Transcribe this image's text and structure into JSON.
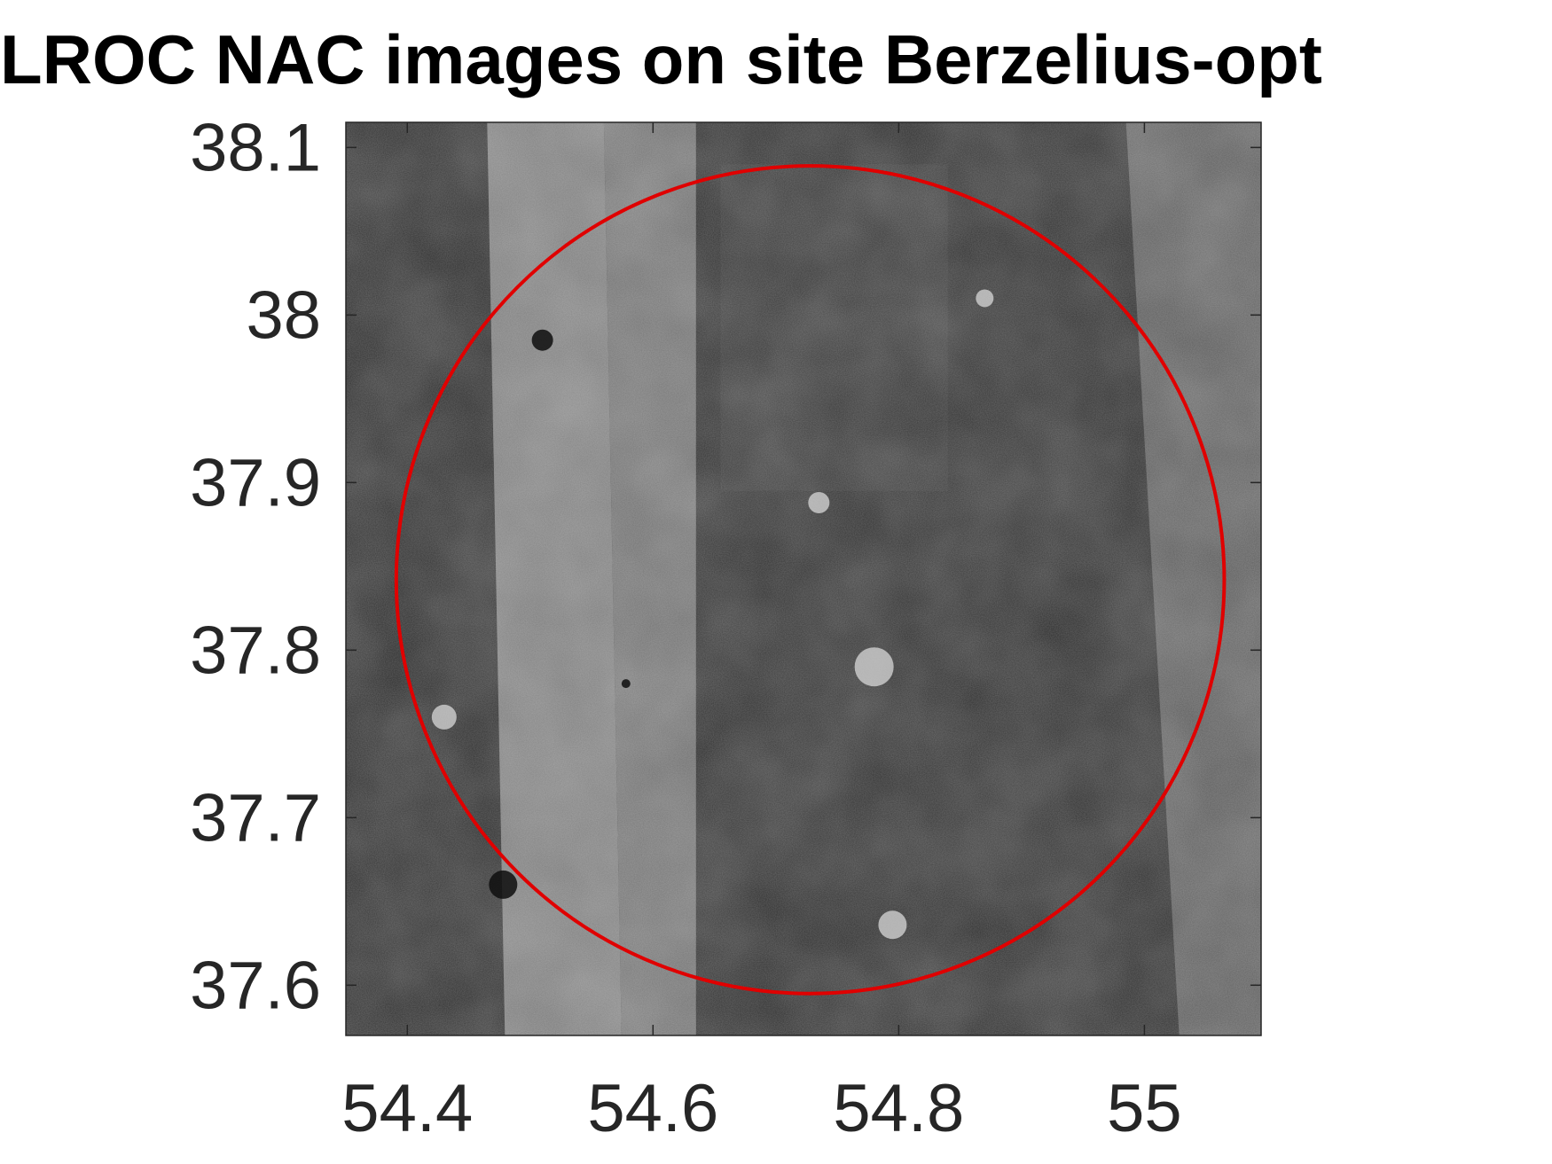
{
  "chart_data": {
    "type": "image",
    "title": "LROC NAC images on site Berzelius-opt",
    "xlabel": "",
    "ylabel": "",
    "xlim": [
      54.35,
      55.095
    ],
    "ylim": [
      37.57,
      38.115
    ],
    "x_ticks": [
      54.4,
      54.6,
      54.8,
      55
    ],
    "x_tick_labels": [
      "54.4",
      "54.6",
      "54.8",
      "55"
    ],
    "y_ticks": [
      37.6,
      37.7,
      37.8,
      37.9,
      38.0,
      38.1
    ],
    "y_tick_labels": [
      "37.6",
      "37.7",
      "37.8",
      "37.9",
      "38",
      "38.1"
    ],
    "grid": false,
    "circle": {
      "center_x": 54.728,
      "center_y": 37.842,
      "radius_y": 0.247,
      "color": "#e00000"
    },
    "image_strips": [
      {
        "name": "strip-left-dark",
        "x0": 54.35,
        "x1": 54.465,
        "tone": "#2a2a2a"
      },
      {
        "name": "strip-bright-1",
        "x0": 54.465,
        "x1": 54.56,
        "tone": "#7a7a7a"
      },
      {
        "name": "strip-bright-2",
        "x0": 54.56,
        "x1": 54.635,
        "tone": "#6e6e6e"
      },
      {
        "name": "strip-center-dark",
        "x0": 54.635,
        "x1": 54.985,
        "tone": "#2c2c2c"
      },
      {
        "name": "strip-right-gray",
        "x0": 54.985,
        "x1": 55.095,
        "tone": "#5a5a5a"
      }
    ],
    "colors": {
      "circle": "#e00000",
      "axes": "#262626",
      "background": "#ffffff"
    }
  }
}
